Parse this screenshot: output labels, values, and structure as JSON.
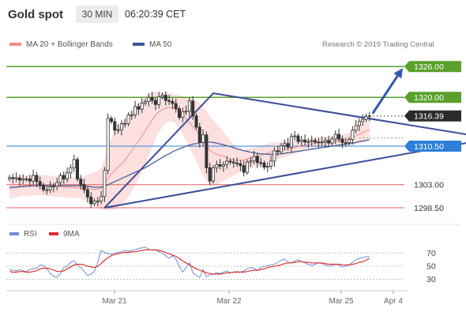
{
  "header": {
    "instrument": "Gold spot",
    "timeframe": "30 MIN",
    "clock": "06:20:39 CET"
  },
  "legend": {
    "ma_bands": {
      "label": "MA 20 + Bollinger Bands",
      "color": "#f28b8b"
    },
    "ma50": {
      "label": "MA 50",
      "color": "#3a5a96"
    },
    "credit": "Research © 2019 Trading Central"
  },
  "rsi_legend": {
    "rsi": {
      "label": "RSI",
      "color": "#6f8fd8"
    },
    "ma": {
      "label": "9MA",
      "color": "#e03030"
    }
  },
  "chart_data": {
    "type": "candlestick",
    "price_range": [
      1296.5,
      1328.5
    ],
    "levels": [
      {
        "price": "1326.00",
        "kind": "resistance",
        "color": "#5aa02c"
      },
      {
        "price": "1320.00",
        "kind": "resistance",
        "color": "#5aa02c"
      },
      {
        "price": "1316.39",
        "kind": "last",
        "color": "#333333"
      },
      {
        "price": "1310.50",
        "kind": "pivot",
        "color": "#2e7fd8"
      },
      {
        "price": "1303.00",
        "kind": "support",
        "color": "#e06060"
      },
      {
        "price": "1298.50",
        "kind": "support",
        "color": "#e06060"
      }
    ],
    "x_ticks": [
      "Mar 21",
      "Mar 22",
      "Mar 25",
      "Apr 4"
    ],
    "close": [
      1304.4,
      1304.2,
      1304.3,
      1303.9,
      1304.1,
      1304.1,
      1303.7,
      1304.8,
      1303.6,
      1302.9,
      1302.0,
      1302.0,
      1302.6,
      1302.7,
      1303.4,
      1304.8,
      1304.1,
      1305.3,
      1306.3,
      1307.9,
      1304.1,
      1303.0,
      1302.0,
      1300.6,
      1299.3,
      1299.8,
      1299.8,
      1300.7,
      1305.8,
      1315.9,
      1315.3,
      1313.6,
      1313.7,
      1314.9,
      1314.9,
      1316.6,
      1316.6,
      1318.2,
      1317.7,
      1318.9,
      1319.2,
      1320.0,
      1319.4,
      1318.6,
      1320.1,
      1320.4,
      1319.4,
      1319.2,
      1318.8,
      1317.8,
      1316.1,
      1317.2,
      1317.3,
      1319.3,
      1316.4,
      1314.2,
      1311.2,
      1312.7,
      1306.3,
      1303.7,
      1306.3,
      1306.9,
      1306.6,
      1306.9,
      1307.6,
      1307.4,
      1307.2,
      1307.1,
      1306.7,
      1305.4,
      1307.4,
      1307.6,
      1308.5,
      1307.3,
      1307.2,
      1306.4,
      1306.6,
      1307.6,
      1309.6,
      1309.4,
      1310.6,
      1311.0,
      1310.3,
      1312.4,
      1312.5,
      1311.4,
      1311.7,
      1311.3,
      1311.4,
      1311.6,
      1311.3,
      1311.2,
      1311.3,
      1311.6,
      1311.1,
      1311.9,
      1312.8,
      1311.9,
      1311.2,
      1311.2,
      1311.8,
      1313.6,
      1314.5,
      1315.3,
      1315.7,
      1316.3,
      1316.4
    ],
    "ma20": [
      1302.3,
      1302.4,
      1302.6,
      1302.7,
      1302.8,
      1302.8,
      1302.9,
      1302.9,
      1302.9,
      1302.9,
      1302.9,
      1302.8,
      1302.8,
      1302.7,
      1302.7,
      1302.6,
      1302.5,
      1302.5,
      1302.5,
      1302.4,
      1302.4,
      1302.4,
      1302.4,
      1302.3,
      1302.2,
      1302.1,
      1302.1,
      1302.3,
      1303.0,
      1304.2,
      1305.1,
      1305.8,
      1306.5,
      1307.0,
      1307.8,
      1308.7,
      1309.6,
      1310.6,
      1311.5,
      1312.4,
      1313.5,
      1314.6,
      1315.6,
      1316.5,
      1317.2,
      1317.6,
      1317.9,
      1318.1,
      1318.0,
      1317.7,
      1317.2,
      1316.5,
      1315.8,
      1315.1,
      1314.3,
      1313.5,
      1312.5,
      1311.5,
      1310.6,
      1309.7,
      1309.2,
      1308.9,
      1308.7,
      1308.5,
      1308.3,
      1308.0,
      1307.8,
      1307.7,
      1307.8,
      1307.8,
      1308.0,
      1308.2,
      1308.3,
      1308.5,
      1308.7,
      1308.9,
      1309.1,
      1309.4,
      1309.5,
      1309.6,
      1309.8,
      1309.9,
      1310.0,
      1310.1,
      1310.2,
      1310.4,
      1310.6,
      1310.7,
      1310.8,
      1310.9,
      1311.1,
      1311.2,
      1311.3,
      1311.3,
      1311.3,
      1311.4,
      1311.5,
      1311.6,
      1311.6,
      1311.7,
      1311.8,
      1312.1,
      1312.5,
      1312.8,
      1313.1,
      1313.4,
      1313.7
    ],
    "ma50": [
      1302.5,
      1302.5,
      1302.5,
      1302.6,
      1302.6,
      1302.7,
      1302.7,
      1302.8,
      1302.8,
      1302.8,
      1302.8,
      1302.8,
      1302.8,
      1302.8,
      1302.8,
      1302.8,
      1302.8,
      1302.8,
      1302.8,
      1302.8,
      1302.8,
      1302.8,
      1302.8,
      1302.7,
      1302.6,
      1302.5,
      1302.5,
      1302.5,
      1302.7,
      1303.0,
      1303.3,
      1303.6,
      1303.9,
      1304.2,
      1304.5,
      1304.8,
      1305.1,
      1305.4,
      1305.7,
      1306.0,
      1306.3,
      1306.7,
      1307.1,
      1307.5,
      1307.9,
      1308.3,
      1308.7,
      1309.0,
      1309.4,
      1309.7,
      1310.0,
      1310.2,
      1310.5,
      1310.7,
      1310.9,
      1311.0,
      1311.2,
      1311.3,
      1311.3,
      1311.3,
      1311.2,
      1311.1,
      1310.9,
      1310.8,
      1310.6,
      1310.4,
      1310.2,
      1310.0,
      1309.8,
      1309.6,
      1309.5,
      1309.3,
      1309.2,
      1309.1,
      1309.0,
      1309.0,
      1308.9,
      1308.9,
      1308.9,
      1309.0,
      1309.0,
      1309.1,
      1309.2,
      1309.3,
      1309.4,
      1309.5,
      1309.6,
      1309.7,
      1309.8,
      1309.9,
      1310.0,
      1310.1,
      1310.2,
      1310.3,
      1310.4,
      1310.5,
      1310.6,
      1310.7,
      1310.8,
      1310.9,
      1311.0,
      1311.1,
      1311.2,
      1311.4,
      1311.5,
      1311.6,
      1311.8
    ],
    "bb_width": [
      2.0,
      2.0,
      2.0,
      2.0,
      2.0,
      2.0,
      2.0,
      2.0,
      2.0,
      2.0,
      2.0,
      2.0,
      2.0,
      2.0,
      2.0,
      2.0,
      2.0,
      2.0,
      2.0,
      2.0,
      2.0,
      2.1,
      2.3,
      2.6,
      3.0,
      3.3,
      3.6,
      4.0,
      5.0,
      6.3,
      7.0,
      7.5,
      7.8,
      8.0,
      8.1,
      8.0,
      7.9,
      7.7,
      7.4,
      7.0,
      6.6,
      6.0,
      5.4,
      4.6,
      3.9,
      3.4,
      3.0,
      2.8,
      2.7,
      2.8,
      3.2,
      3.7,
      4.2,
      4.8,
      5.4,
      6.0,
      6.4,
      6.7,
      6.8,
      6.7,
      6.4,
      6.0,
      5.4,
      4.8,
      4.2,
      3.6,
      3.0,
      2.6,
      2.3,
      2.1,
      2.0,
      2.0,
      1.9,
      1.9,
      1.9,
      1.9,
      1.8,
      1.8,
      1.7,
      1.7,
      1.6,
      1.5,
      1.4,
      1.4,
      1.3,
      1.2,
      1.2,
      1.1,
      1.1,
      1.1,
      1.1,
      1.0,
      1.0,
      1.0,
      1.0,
      1.0,
      1.0,
      1.0,
      1.1,
      1.2,
      1.3,
      1.5,
      1.6,
      1.8,
      1.9,
      2.0,
      2.1
    ],
    "triangle": {
      "upper": [
        [
          28,
          1298.5
        ],
        [
          60,
          1320.8
        ],
        [
          142,
          1312.0
        ]
      ],
      "lower": [
        [
          28,
          1298.5
        ],
        [
          142,
          1312.0
        ]
      ]
    },
    "projection_target": "1326.00",
    "rsi_levels": [
      30,
      50,
      70
    ],
    "rsi": [
      45,
      44,
      43,
      45,
      43,
      42,
      45,
      46,
      47,
      52,
      51,
      46,
      39,
      35,
      33,
      39,
      48,
      50,
      56,
      58,
      52,
      48,
      42,
      36,
      38,
      42,
      56,
      74,
      71,
      69,
      68,
      70,
      71,
      72,
      74,
      73,
      74,
      75,
      77,
      78,
      79,
      76,
      74,
      75,
      72,
      70,
      66,
      62,
      66,
      61,
      50,
      41,
      48,
      55,
      40,
      36,
      33,
      45,
      34,
      37,
      38,
      40,
      39,
      41,
      43,
      40,
      41,
      42,
      41,
      43,
      46,
      48,
      47,
      43,
      48,
      50,
      51,
      52,
      53,
      56,
      59,
      61,
      56,
      55,
      58,
      60,
      57,
      55,
      53,
      51,
      53,
      55,
      54,
      52,
      50,
      51,
      53,
      52,
      49,
      50,
      52,
      56,
      60,
      62,
      63,
      64,
      65
    ],
    "rsi_ma": [
      42,
      41,
      41,
      42,
      42,
      41,
      41,
      42,
      43,
      46,
      47,
      47,
      46,
      44,
      42,
      42,
      43,
      46,
      49,
      52,
      53,
      53,
      52,
      50,
      49,
      48,
      50,
      54,
      59,
      63,
      66,
      68,
      69,
      70,
      71,
      71,
      72,
      72,
      73,
      74,
      75,
      75,
      75,
      75,
      74,
      73,
      71,
      69,
      67,
      65,
      62,
      58,
      55,
      52,
      49,
      46,
      44,
      42,
      40,
      39,
      38,
      38,
      38,
      39,
      40,
      40,
      41,
      41,
      41,
      41,
      42,
      43,
      44,
      44,
      45,
      46,
      48,
      49,
      50,
      51,
      52,
      54,
      55,
      55,
      56,
      57,
      57,
      56,
      56,
      55,
      55,
      55,
      55,
      54,
      53,
      53,
      53,
      53,
      52,
      52,
      52,
      53,
      54,
      56,
      57,
      59,
      62
    ]
  }
}
